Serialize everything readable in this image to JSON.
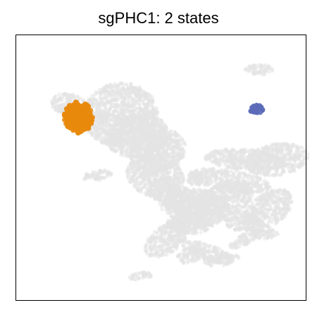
{
  "chart_data": {
    "type": "scatter",
    "title": "sgPHC1: 2 states",
    "xlabel": "",
    "ylabel": "",
    "grid": false,
    "axes_ticks": false,
    "colors": {
      "background_cells": "#e4e4e4",
      "state_1": "#e88a0c",
      "state_2": "#5b6bb8",
      "frame": "#000000"
    },
    "series": [
      {
        "color": "#e4e4e4",
        "role": "background",
        "regions": [
          {
            "center": [
              18,
              74
            ],
            "radii": [
              6,
              4
            ],
            "rot": -10
          },
          {
            "center": [
              36,
              70
            ],
            "radii": [
              13,
              12
            ],
            "rot": 15
          },
          {
            "center": [
              42,
              62
            ],
            "radii": [
              11,
              8
            ],
            "rot": 10
          },
          {
            "center": [
              49,
              56
            ],
            "radii": [
              10,
              8
            ],
            "rot": 30
          },
          {
            "center": [
              48,
              47
            ],
            "radii": [
              10,
              8
            ],
            "rot": -20
          },
          {
            "center": [
              56,
              38
            ],
            "radii": [
              12,
              5
            ],
            "rot": -30
          },
          {
            "center": [
              62,
              35
            ],
            "radii": [
              12,
              7
            ],
            "rot": -5
          },
          {
            "center": [
              72,
              38
            ],
            "radii": [
              10,
              6
            ],
            "rot": 20
          },
          {
            "center": [
              78,
              30
            ],
            "radii": [
              6,
              4
            ],
            "rot": 0
          },
          {
            "center": [
              87,
              34
            ],
            "radii": [
              10,
              6
            ],
            "rot": 40
          },
          {
            "center": [
              90,
              53
            ],
            "radii": [
              11,
              6
            ],
            "rot": 10
          },
          {
            "center": [
              79,
              53
            ],
            "radii": [
              14,
              4
            ],
            "rot": -5
          },
          {
            "center": [
              60,
              29
            ],
            "radii": [
              8,
              4
            ],
            "rot": 0
          },
          {
            "center": [
              74,
              45
            ],
            "radii": [
              14,
              4
            ],
            "rot": -10
          },
          {
            "center": [
              52,
              23
            ],
            "radii": [
              9,
              5
            ],
            "rot": 40
          },
          {
            "center": [
              60,
              17
            ],
            "radii": [
              5,
              3
            ],
            "rot": 20
          },
          {
            "center": [
              66,
              18
            ],
            "radii": [
              9,
              3
            ],
            "rot": -20
          },
          {
            "center": [
              71,
              15
            ],
            "radii": [
              6,
              2
            ],
            "rot": 10
          },
          {
            "center": [
              79,
              23
            ],
            "radii": [
              6,
              2
            ],
            "rot": 30
          },
          {
            "center": [
              86,
              25
            ],
            "radii": [
              5,
              2
            ],
            "rot": 0
          },
          {
            "center": [
              62,
              46
            ],
            "radii": [
              3,
              3
            ],
            "rot": 0
          },
          {
            "center": [
              43,
              9
            ],
            "radii": [
              4,
              1.5
            ],
            "rot": 10
          },
          {
            "center": [
              84,
              87
            ],
            "radii": [
              5,
              2
            ],
            "rot": 0
          },
          {
            "center": [
              30,
              69
            ],
            "radii": [
              3,
              1.5
            ],
            "rot": 40
          },
          {
            "center": [
              28,
              47
            ],
            "radii": [
              5,
              2
            ],
            "rot": 10
          }
        ]
      },
      {
        "color": "#e88a0c",
        "role": "state",
        "regions": [
          {
            "center": [
              21.5,
              69
            ],
            "radii": [
              5,
              6
            ],
            "rot": 0
          }
        ]
      },
      {
        "color": "#5b6bb8",
        "role": "state",
        "regions": [
          {
            "center": [
              83,
              72
            ],
            "radii": [
              2.2,
              1.8
            ],
            "rot": 0
          }
        ]
      }
    ],
    "xlim": [
      0,
      100
    ],
    "ylim": [
      0,
      100
    ]
  }
}
